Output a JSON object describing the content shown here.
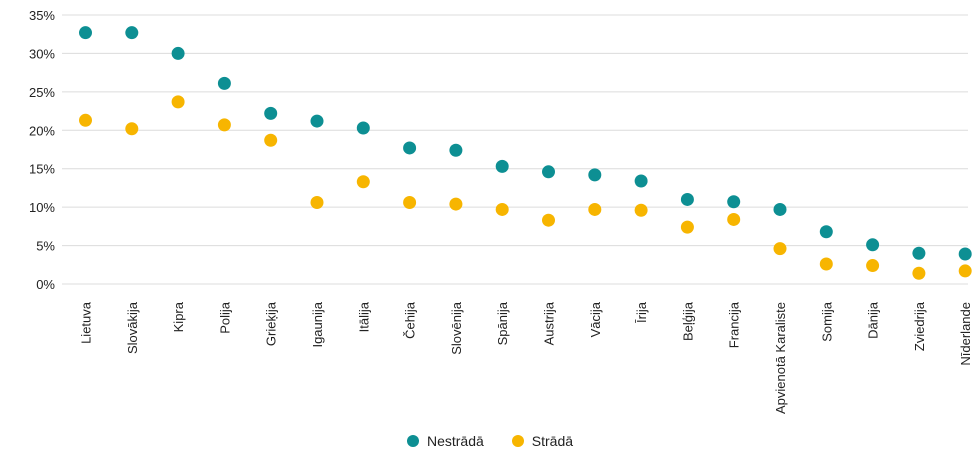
{
  "chart_data": {
    "type": "scatter",
    "categories": [
      "Lietuva",
      "Slovākija",
      "Kipra",
      "Polija",
      "Grieķija",
      "Igaunija",
      "Itālija",
      "Čehija",
      "Slovēnija",
      "Spānija",
      "Austrija",
      "Vācija",
      "Īrija",
      "Beļģija",
      "Francija",
      "Apvienotā Karaliste",
      "Somija",
      "Dānija",
      "Zviedrija",
      "Nīderlande"
    ],
    "series": [
      {
        "name": "Nestrādā",
        "color": "#0d8f93",
        "values": [
          32.7,
          32.7,
          30.0,
          26.1,
          22.2,
          21.2,
          20.3,
          17.7,
          17.4,
          15.3,
          14.6,
          14.2,
          13.4,
          11.0,
          10.7,
          9.7,
          6.8,
          5.1,
          4.0,
          3.9
        ]
      },
      {
        "name": "Strādā",
        "color": "#f7b500",
        "values": [
          21.3,
          20.2,
          23.7,
          20.7,
          18.7,
          10.6,
          13.3,
          10.6,
          10.4,
          9.7,
          8.3,
          9.7,
          9.6,
          7.4,
          8.4,
          4.6,
          2.6,
          2.4,
          1.4,
          1.7
        ]
      }
    ],
    "yticks": [
      "0%",
      "5%",
      "10%",
      "15%",
      "20%",
      "25%",
      "30%",
      "35%"
    ],
    "ylim": [
      0,
      35
    ],
    "grid": true,
    "legend_position": "bottom-center"
  }
}
